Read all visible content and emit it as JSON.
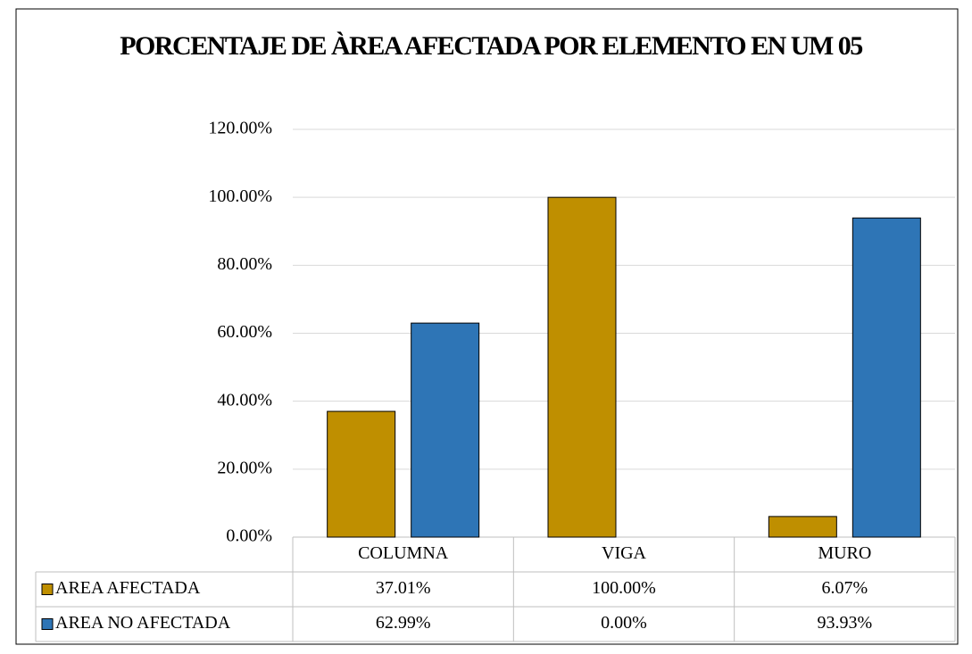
{
  "chart_data": {
    "type": "bar",
    "title": "PORCENTAJE DE ÀREA AFECTADA POR ELEMENTO EN UM 05",
    "categories": [
      "COLUMNA",
      "VIGA",
      "MURO"
    ],
    "series": [
      {
        "name": "AREA AFECTADA",
        "color": "#bf8f00",
        "values": [
          37.01,
          100,
          6.07
        ],
        "value_labels": [
          "37.01%",
          "100.00%",
          "6.07%"
        ]
      },
      {
        "name": "AREA NO AFECTADA",
        "color": "#2e75b6",
        "values": [
          62.99,
          0,
          93.93
        ],
        "value_labels": [
          "62.99%",
          "0.00%",
          "93.93%"
        ]
      }
    ],
    "ylim": [
      0,
      120
    ],
    "yticks": [
      {
        "value": 0,
        "label": "0.00%"
      },
      {
        "value": 20,
        "label": "20.00%"
      },
      {
        "value": 40,
        "label": "40.00%"
      },
      {
        "value": 60,
        "label": "60.00%"
      },
      {
        "value": 80,
        "label": "80.00%"
      },
      {
        "value": 100,
        "label": "100.00%"
      },
      {
        "value": 120,
        "label": "120.00%"
      }
    ],
    "grid": true
  }
}
